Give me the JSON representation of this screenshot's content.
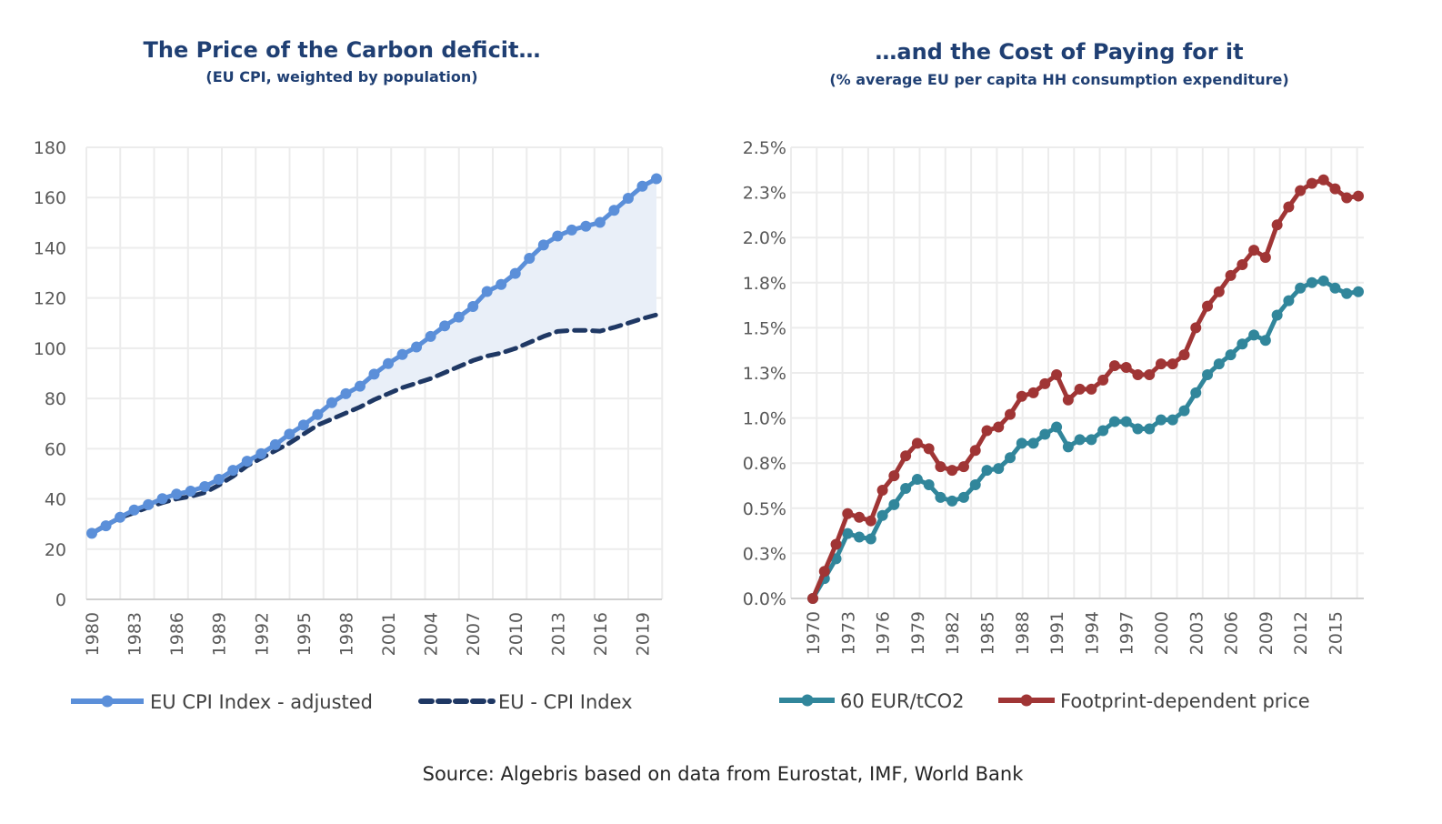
{
  "source": "Source: Algebris based on data from Eurostat, IMF, World Bank",
  "chart_data": [
    {
      "type": "area",
      "title": "The Price of the Carbon deficit…",
      "subtitle": "(EU CPI, weighted by population)",
      "xlabel": "",
      "ylabel": "",
      "ylim": [
        0,
        180
      ],
      "yticks": [
        "0",
        "20",
        "40",
        "60",
        "80",
        "100",
        "120",
        "140",
        "160",
        "180"
      ],
      "xticks": [
        "1980",
        "1983",
        "1986",
        "1989",
        "1992",
        "1995",
        "1998",
        "2001",
        "2004",
        "2007",
        "2010",
        "2013",
        "2016",
        "2019"
      ],
      "grid": true,
      "legend_position": "bottom",
      "x": [
        1980,
        1981,
        1982,
        1983,
        1984,
        1985,
        1986,
        1987,
        1988,
        1989,
        1990,
        1991,
        1992,
        1993,
        1994,
        1995,
        1996,
        1997,
        1998,
        1999,
        2000,
        2001,
        2002,
        2003,
        2004,
        2005,
        2006,
        2007,
        2008,
        2009,
        2010,
        2011,
        2012,
        2013,
        2014,
        2015,
        2016,
        2017,
        2018,
        2019,
        2020
      ],
      "series": [
        {
          "name": "EU CPI Index - adjusted",
          "color": "#5b8fd9",
          "style": "solid-markers",
          "values": [
            26.3,
            29.3,
            32.7,
            35.6,
            37.7,
            40.1,
            41.9,
            43.1,
            44.9,
            47.8,
            51.4,
            55.0,
            58.0,
            61.6,
            65.8,
            69.4,
            73.6,
            78.3,
            81.9,
            84.9,
            89.7,
            93.9,
            97.5,
            100.5,
            104.7,
            108.9,
            112.4,
            116.6,
            122.6,
            125.4,
            129.8,
            135.8,
            141.1,
            144.7,
            147.1,
            148.6,
            150.1,
            154.9,
            159.7,
            164.5,
            167.5
          ]
        },
        {
          "name": "EU - CPI Index",
          "color": "#1f3864",
          "style": "dashed",
          "values": [
            26.3,
            29.5,
            32.5,
            34.5,
            36.7,
            38.5,
            40.0,
            41.0,
            42.5,
            45.5,
            49.0,
            53.2,
            56.2,
            59.2,
            62.2,
            65.8,
            69.4,
            71.8,
            74.2,
            76.6,
            79.5,
            81.9,
            84.3,
            86.1,
            87.9,
            90.3,
            92.7,
            95.1,
            96.9,
            98.1,
            99.9,
            102.3,
            104.7,
            106.7,
            107.1,
            107.1,
            106.8,
            108.3,
            110.0,
            111.8,
            113.3
          ]
        }
      ],
      "fill_between_color": "#e9eff8"
    },
    {
      "type": "line",
      "title": "…and the Cost of Paying for it",
      "subtitle": "(% average EU per capita HH consumption expenditure)",
      "xlabel": "",
      "ylabel": "",
      "ylim": [
        0,
        2.5
      ],
      "yticks": [
        "0.0%",
        "0.3%",
        "0.5%",
        "0.8%",
        "1.0%",
        "1.3%",
        "1.5%",
        "1.8%",
        "2.0%",
        "2.3%",
        "2.5%"
      ],
      "xticks": [
        "1970",
        "1973",
        "1976",
        "1979",
        "1982",
        "1985",
        "1988",
        "1991",
        "1994",
        "1997",
        "2000",
        "2003",
        "2006",
        "2009",
        "2012",
        "2015"
      ],
      "grid": true,
      "legend_position": "bottom",
      "x": [
        1970,
        1971,
        1972,
        1973,
        1974,
        1975,
        1976,
        1977,
        1978,
        1979,
        1980,
        1981,
        1982,
        1983,
        1984,
        1985,
        1986,
        1987,
        1988,
        1989,
        1990,
        1991,
        1992,
        1993,
        1994,
        1995,
        1996,
        1997,
        1998,
        1999,
        2000,
        2001,
        2002,
        2003,
        2004,
        2005,
        2006,
        2007,
        2008,
        2009,
        2010,
        2011,
        2012,
        2013,
        2014,
        2015,
        2016,
        2017
      ],
      "series": [
        {
          "name": "60 EUR/tCO2",
          "color": "#31869b",
          "values": [
            0,
            0.11,
            0.22,
            0.36,
            0.34,
            0.33,
            0.46,
            0.52,
            0.61,
            0.66,
            0.63,
            0.56,
            0.54,
            0.56,
            0.63,
            0.71,
            0.72,
            0.78,
            0.86,
            0.86,
            0.91,
            0.95,
            0.84,
            0.88,
            0.88,
            0.93,
            0.98,
            0.98,
            0.94,
            0.94,
            0.99,
            0.99,
            1.04,
            1.14,
            1.24,
            1.3,
            1.35,
            1.41,
            1.46,
            1.43,
            1.57,
            1.65,
            1.72,
            1.75,
            1.76,
            1.72,
            1.69,
            1.7
          ]
        },
        {
          "name": "Footprint-dependent price",
          "color": "#a03535",
          "values": [
            0,
            0.15,
            0.3,
            0.47,
            0.45,
            0.43,
            0.6,
            0.68,
            0.79,
            0.86,
            0.83,
            0.73,
            0.71,
            0.73,
            0.82,
            0.93,
            0.95,
            1.02,
            1.12,
            1.14,
            1.19,
            1.24,
            1.1,
            1.16,
            1.16,
            1.21,
            1.29,
            1.28,
            1.24,
            1.24,
            1.3,
            1.3,
            1.35,
            1.5,
            1.62,
            1.7,
            1.79,
            1.85,
            1.93,
            1.89,
            2.07,
            2.17,
            2.26,
            2.3,
            2.32,
            2.27,
            2.22,
            2.23
          ]
        }
      ]
    }
  ]
}
